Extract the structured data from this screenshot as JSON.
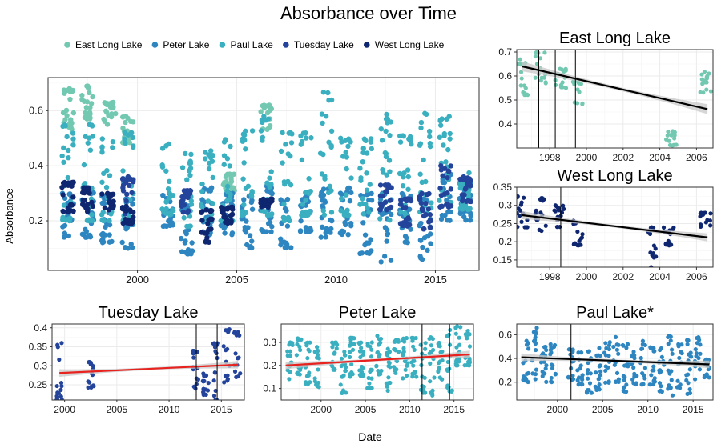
{
  "title": "Absorbance over Time",
  "xlabel": "Date",
  "colors": {
    "east": "#72C8B0",
    "peter": "#2E86C1",
    "paul": "#3AAFC0",
    "tuesday": "#24449C",
    "west": "#0F2670",
    "trend_black": "#000000",
    "trend_red": "#E8221E",
    "ribbon": "#C8C8C8"
  },
  "chart_data": [
    {
      "panel": "main",
      "type": "scatter",
      "title": "",
      "ylabel": "Absorbance",
      "xlim": [
        1995.5,
        2017.2
      ],
      "ylim": [
        0.02,
        0.72
      ],
      "xticks": [
        2000,
        2005,
        2010,
        2015
      ],
      "yticks": [
        0.2,
        0.4,
        0.6
      ],
      "grid": true,
      "legend_position": "top",
      "legend": [
        "East Long Lake",
        "Peter Lake",
        "Paul Lake",
        "Tuesday Lake",
        "West Long Lake"
      ],
      "series": [
        {
          "name": "East Long Lake",
          "color_key": "east",
          "clusters": [
            [
              1996.5,
              0.52,
              0.68
            ],
            [
              1997.5,
              0.57,
              0.69
            ],
            [
              1998.6,
              0.55,
              0.63
            ],
            [
              1999.5,
              0.48,
              0.58
            ],
            [
              2004.6,
              0.31,
              0.37
            ],
            [
              2006.5,
              0.53,
              0.62
            ]
          ]
        },
        {
          "name": "Peter Lake",
          "color_key": "peter",
          "clusters": [
            [
              1996.5,
              0.14,
              0.3
            ],
            [
              1997.5,
              0.14,
              0.32
            ],
            [
              1998.5,
              0.12,
              0.3
            ],
            [
              1999.5,
              0.1,
              0.28
            ],
            [
              2001.5,
              0.18,
              0.3
            ],
            [
              2002.5,
              0.08,
              0.26
            ],
            [
              2003.5,
              0.15,
              0.32
            ],
            [
              2004.5,
              0.15,
              0.3
            ],
            [
              2005.5,
              0.1,
              0.3
            ],
            [
              2006.5,
              0.16,
              0.33
            ],
            [
              2007.5,
              0.09,
              0.28
            ],
            [
              2008.5,
              0.16,
              0.31
            ],
            [
              2009.5,
              0.14,
              0.32
            ],
            [
              2010.5,
              0.15,
              0.32
            ],
            [
              2011.5,
              0.08,
              0.3
            ],
            [
              2012.5,
              0.05,
              0.3
            ],
            [
              2013.5,
              0.12,
              0.3
            ],
            [
              2014.5,
              0.06,
              0.29
            ],
            [
              2015.5,
              0.2,
              0.37
            ],
            [
              2016.5,
              0.2,
              0.35
            ]
          ]
        },
        {
          "name": "Paul Lake",
          "color_key": "paul",
          "clusters": [
            [
              1996.5,
              0.2,
              0.55
            ],
            [
              1997.5,
              0.2,
              0.55
            ],
            [
              1998.5,
              0.2,
              0.5
            ],
            [
              1999.5,
              0.2,
              0.52
            ],
            [
              2001.5,
              0.22,
              0.48
            ],
            [
              2002.5,
              0.18,
              0.45
            ],
            [
              2003.5,
              0.2,
              0.46
            ],
            [
              2004.5,
              0.2,
              0.5
            ],
            [
              2005.5,
              0.22,
              0.54
            ],
            [
              2006.5,
              0.22,
              0.58
            ],
            [
              2007.5,
              0.2,
              0.52
            ],
            [
              2008.5,
              0.22,
              0.52
            ],
            [
              2009.5,
              0.22,
              0.67
            ],
            [
              2010.5,
              0.22,
              0.5
            ],
            [
              2011.5,
              0.2,
              0.5
            ],
            [
              2012.5,
              0.2,
              0.59
            ],
            [
              2013.5,
              0.22,
              0.52
            ],
            [
              2014.5,
              0.2,
              0.59
            ],
            [
              2015.5,
              0.26,
              0.58
            ],
            [
              2016.5,
              0.24,
              0.38
            ]
          ]
        },
        {
          "name": "Tuesday Lake",
          "color_key": "tuesday",
          "clusters": [
            [
              1999.5,
              0.2,
              0.36
            ],
            [
              2002.5,
              0.23,
              0.31
            ],
            [
              2012.5,
              0.24,
              0.33
            ],
            [
              2013.5,
              0.18,
              0.28
            ],
            [
              2014.5,
              0.17,
              0.3
            ],
            [
              2015.5,
              0.25,
              0.4
            ],
            [
              2016.5,
              0.27,
              0.36
            ]
          ]
        },
        {
          "name": "West Long Lake",
          "color_key": "west",
          "clusters": [
            [
              1996.5,
              0.23,
              0.34
            ],
            [
              1997.5,
              0.23,
              0.32
            ],
            [
              1998.5,
              0.24,
              0.3
            ],
            [
              1999.5,
              0.19,
              0.26
            ],
            [
              2003.5,
              0.12,
              0.24
            ],
            [
              2004.5,
              0.19,
              0.25
            ],
            [
              2006.5,
              0.25,
              0.28
            ]
          ]
        }
      ]
    },
    {
      "panel": "east",
      "type": "scatter",
      "title": "East Long Lake",
      "xlim": [
        1996.2,
        2006.9
      ],
      "ylim": [
        0.3,
        0.71
      ],
      "xticks": [
        1996,
        1998,
        2000,
        2002,
        2004,
        2006
      ],
      "yticks": [
        0.4,
        0.5,
        0.6,
        0.7
      ],
      "color_key": "east",
      "clusters": [
        [
          1996.5,
          0.52,
          0.67
        ],
        [
          1997.5,
          0.57,
          0.7
        ],
        [
          1998.6,
          0.55,
          0.63
        ],
        [
          1999.5,
          0.48,
          0.58
        ],
        [
          2004.6,
          0.31,
          0.37
        ],
        [
          2006.5,
          0.53,
          0.62
        ]
      ],
      "trend": {
        "x": [
          1996.5,
          2006.6
        ],
        "y": [
          0.64,
          0.462
        ],
        "color_key": "trend_black"
      },
      "vlines": [
        1997.4,
        1998.3,
        1999.4
      ]
    },
    {
      "panel": "west",
      "type": "scatter",
      "title": "West Long Lake",
      "xlim": [
        1996.2,
        2006.9
      ],
      "ylim": [
        0.13,
        0.35
      ],
      "xticks": [
        1996,
        1998,
        2000,
        2002,
        2004,
        2006
      ],
      "yticks": [
        0.15,
        0.2,
        0.25,
        0.3,
        0.35
      ],
      "color_key": "west",
      "clusters": [
        [
          1996.5,
          0.24,
          0.34
        ],
        [
          1997.5,
          0.23,
          0.32
        ],
        [
          1998.5,
          0.24,
          0.3
        ],
        [
          1999.5,
          0.19,
          0.26
        ],
        [
          2003.5,
          0.13,
          0.24
        ],
        [
          2004.5,
          0.19,
          0.24
        ],
        [
          2006.5,
          0.24,
          0.28
        ]
      ],
      "trend": {
        "x": [
          1996.5,
          2006.6
        ],
        "y": [
          0.273,
          0.212
        ],
        "color_key": "trend_black"
      },
      "vlines": [
        1998.6
      ]
    },
    {
      "panel": "tuesday",
      "type": "scatter",
      "title": "Tuesday Lake",
      "xlim": [
        1998.8,
        2017.2
      ],
      "ylim": [
        0.21,
        0.41
      ],
      "xticks": [
        2000,
        2005,
        2010,
        2015
      ],
      "yticks": [
        0.25,
        0.3,
        0.35,
        0.4
      ],
      "color_key": "tuesday",
      "clusters": [
        [
          1999.5,
          0.21,
          0.36
        ],
        [
          2002.5,
          0.24,
          0.31
        ],
        [
          2012.5,
          0.24,
          0.34
        ],
        [
          2013.5,
          0.22,
          0.28
        ],
        [
          2014.5,
          0.21,
          0.36
        ],
        [
          2015.5,
          0.25,
          0.4
        ],
        [
          2016.5,
          0.27,
          0.39
        ]
      ],
      "trend": {
        "x": [
          1999.5,
          2016.6
        ],
        "y": [
          0.281,
          0.303
        ],
        "color_key": "trend_red"
      },
      "vlines": [
        2012.6,
        2014.6
      ]
    },
    {
      "panel": "peter",
      "type": "scatter",
      "title": "Peter Lake",
      "xlim": [
        1995.5,
        2017.2
      ],
      "ylim": [
        0.05,
        0.38
      ],
      "xticks": [
        2000,
        2005,
        2010,
        2015
      ],
      "yticks": [
        0.1,
        0.2,
        0.3
      ],
      "color_key": "paul",
      "clusters": [
        [
          1996.5,
          0.14,
          0.3
        ],
        [
          1997.5,
          0.16,
          0.32
        ],
        [
          1998.5,
          0.12,
          0.3
        ],
        [
          1999.5,
          0.1,
          0.28
        ],
        [
          2001.5,
          0.18,
          0.3
        ],
        [
          2002.5,
          0.08,
          0.26
        ],
        [
          2003.5,
          0.15,
          0.32
        ],
        [
          2004.5,
          0.15,
          0.3
        ],
        [
          2005.5,
          0.1,
          0.3
        ],
        [
          2006.5,
          0.16,
          0.33
        ],
        [
          2007.5,
          0.09,
          0.28
        ],
        [
          2008.5,
          0.16,
          0.31
        ],
        [
          2009.5,
          0.14,
          0.32
        ],
        [
          2010.5,
          0.15,
          0.32
        ],
        [
          2011.5,
          0.08,
          0.3
        ],
        [
          2012.5,
          0.07,
          0.33
        ],
        [
          2013.5,
          0.12,
          0.3
        ],
        [
          2014.5,
          0.08,
          0.36
        ],
        [
          2015.5,
          0.2,
          0.37
        ],
        [
          2016.5,
          0.2,
          0.35
        ]
      ],
      "trend": {
        "x": [
          1996.0,
          2016.8
        ],
        "y": [
          0.2,
          0.248
        ],
        "color_key": "trend_red"
      },
      "vlines": [
        2011.4,
        2014.5
      ]
    },
    {
      "panel": "paul",
      "type": "scatter",
      "title": "Paul Lake*",
      "xlim": [
        1995.5,
        2017.2
      ],
      "ylim": [
        0.05,
        0.69
      ],
      "xticks": [
        2000,
        2005,
        2010,
        2015
      ],
      "yticks": [
        0.2,
        0.4,
        0.6
      ],
      "color_key": "peter",
      "clusters": [
        [
          1996.5,
          0.2,
          0.55
        ],
        [
          1997.5,
          0.22,
          0.66
        ],
        [
          1998.5,
          0.2,
          0.5
        ],
        [
          1999.5,
          0.2,
          0.52
        ],
        [
          2001.5,
          0.22,
          0.48
        ],
        [
          2002.5,
          0.18,
          0.45
        ],
        [
          2003.5,
          0.1,
          0.46
        ],
        [
          2004.5,
          0.12,
          0.5
        ],
        [
          2005.5,
          0.18,
          0.54
        ],
        [
          2006.5,
          0.2,
          0.58
        ],
        [
          2007.5,
          0.12,
          0.52
        ],
        [
          2008.5,
          0.18,
          0.52
        ],
        [
          2009.5,
          0.18,
          0.55
        ],
        [
          2010.5,
          0.18,
          0.5
        ],
        [
          2011.5,
          0.12,
          0.5
        ],
        [
          2012.5,
          0.08,
          0.59
        ],
        [
          2013.5,
          0.15,
          0.52
        ],
        [
          2014.5,
          0.1,
          0.59
        ],
        [
          2015.5,
          0.22,
          0.58
        ],
        [
          2016.5,
          0.24,
          0.4
        ]
      ],
      "trend": {
        "x": [
          1996.0,
          2016.8
        ],
        "y": [
          0.41,
          0.35
        ],
        "color_key": "trend_black"
      },
      "vlines": [
        2001.5
      ]
    }
  ]
}
